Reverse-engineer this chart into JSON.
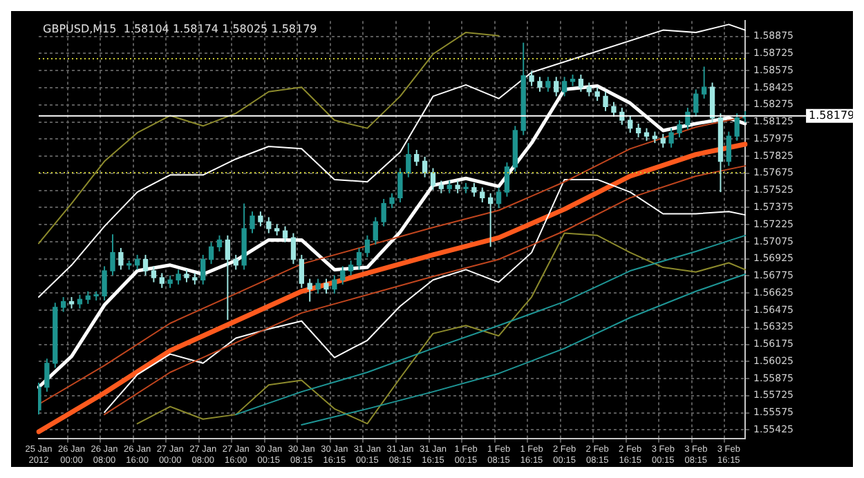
{
  "chart_data": {
    "type": "candlestick",
    "title": "GBPUSD,M15  1.58104 1.58174 1.58025 1.58179",
    "categories": [
      "25 Jan 2012",
      null,
      null,
      null,
      "26 Jan 00:00",
      null,
      null,
      null,
      "26 Jan 08:00",
      null,
      null,
      null,
      "26 Jan 16:00",
      null,
      null,
      null,
      "27 Jan 00:00",
      null,
      null,
      null,
      "27 Jan 08:00",
      null,
      null,
      null,
      "27 Jan 16:00",
      null,
      null,
      null,
      "30 Jan 00:15",
      null,
      null,
      null,
      "30 Jan 08:15",
      null,
      null,
      null,
      "30 Jan 16:15",
      null,
      null,
      null,
      "31 Jan 00:15",
      null,
      null,
      null,
      "31 Jan 08:15",
      null,
      null,
      null,
      "31 Jan 16:15",
      null,
      null,
      null,
      "1 Feb 00:15",
      null,
      null,
      null,
      "1 Feb 08:15",
      null,
      null,
      null,
      "1 Feb 16:15",
      null,
      null,
      null,
      "2 Feb 00:15",
      null,
      null,
      null,
      "2 Feb 08:15",
      null,
      null,
      null,
      "2 Feb 16:15",
      null,
      null,
      null,
      "3 Feb 00:15",
      null,
      null,
      null,
      "3 Feb 08:15",
      null,
      null,
      null,
      "3 Feb 16:15",
      null,
      null
    ],
    "colors": [
      "#1e9490",
      "#1e9490",
      "#1e9490",
      "#1e9490",
      "#9fe6e2",
      "#1e9490",
      "#1e9490",
      "#1e9490",
      "#1e9490",
      "#1e9490",
      "#9fe6e2",
      "#1e9490",
      "#1e9490",
      "#9fe6e2",
      "#9fe6e2",
      "#9fe6e2",
      "#1e9490",
      "#1e9490",
      "#9fe6e2",
      "#9fe6e2",
      "#1e9490",
      "#1e9490",
      "#1e9490",
      "#9fe6e2",
      "#9fe6e2",
      "#1e9490",
      "#1e9490",
      "#9fe6e2",
      "#9fe6e2",
      "#9fe6e2",
      "#9fe6e2",
      "#9fe6e2",
      "#9fe6e2",
      "#9fe6e2",
      "#1e9490",
      "#9fe6e2",
      "#1e9490",
      "#1e9490",
      "#1e9490",
      "#1e9490",
      "#1e9490",
      "#1e9490",
      "#1e9490",
      "#1e9490",
      "#1e9490",
      "#1e9490",
      "#9fe6e2",
      "#9fe6e2",
      "#9fe6e2",
      "#9fe6e2",
      "#1e9490",
      "#9fe6e2",
      "#1e9490",
      "#9fe6e2",
      "#9fe6e2",
      "#9fe6e2",
      "#1e9490",
      "#1e9490",
      "#1e9490",
      "#1e9490",
      "#9fe6e2",
      "#9fe6e2",
      "#1e9490",
      "#9fe6e2",
      "#1e9490",
      "#1e9490",
      "#9fe6e2",
      "#9fe6e2",
      "#9fe6e2",
      "#9fe6e2",
      "#9fe6e2",
      "#9fe6e2",
      "#9fe6e2",
      "#9fe6e2",
      "#9fe6e2",
      "#9fe6e2",
      "#9fe6e2",
      "#1e9490",
      "#1e9490",
      "#1e9490",
      "#1e9490",
      "#1e9490",
      "#9fe6e2",
      "#9fe6e2",
      "#1e9490",
      "#1e9490",
      "#1e9490"
    ],
    "ohlc": [
      [
        1.556,
        1.5584,
        1.5556,
        1.558
      ],
      [
        1.558,
        1.5605,
        1.5576,
        1.5601
      ],
      [
        1.5601,
        1.5654,
        1.5597,
        1.565
      ],
      [
        1.565,
        1.5659,
        1.5646,
        1.5655
      ],
      [
        1.5655,
        1.5659,
        1.5649,
        1.5653
      ],
      [
        1.5653,
        1.5661,
        1.5649,
        1.5657
      ],
      [
        1.5657,
        1.5664,
        1.5653,
        1.566
      ],
      [
        1.566,
        1.5664,
        1.5656,
        1.566
      ],
      [
        1.566,
        1.5686,
        1.5656,
        1.5682
      ],
      [
        1.5682,
        1.5714,
        1.5678,
        1.5698
      ],
      [
        1.5698,
        1.5702,
        1.5683,
        1.5687
      ],
      [
        1.5687,
        1.5691,
        1.5683,
        1.5687
      ],
      [
        1.5687,
        1.5696,
        1.5683,
        1.5692
      ],
      [
        1.5692,
        1.5696,
        1.5678,
        1.5682
      ],
      [
        1.5682,
        1.5686,
        1.5672,
        1.5676
      ],
      [
        1.5676,
        1.568,
        1.5667,
        1.5671
      ],
      [
        1.5671,
        1.5678,
        1.5667,
        1.5674
      ],
      [
        1.5674,
        1.5683,
        1.567,
        1.5679
      ],
      [
        1.5679,
        1.5683,
        1.5672,
        1.5676
      ],
      [
        1.5676,
        1.568,
        1.567,
        1.5674
      ],
      [
        1.5674,
        1.5696,
        1.567,
        1.5692
      ],
      [
        1.5692,
        1.5707,
        1.5688,
        1.5703
      ],
      [
        1.5703,
        1.5713,
        1.5699,
        1.5709
      ],
      [
        1.5709,
        1.5713,
        1.5639,
        1.5692
      ],
      [
        1.5692,
        1.5696,
        1.5683,
        1.5687
      ],
      [
        1.5687,
        1.5741,
        1.5683,
        1.5719
      ],
      [
        1.5719,
        1.5734,
        1.5715,
        1.573
      ],
      [
        1.573,
        1.5734,
        1.5721,
        1.5725
      ],
      [
        1.5725,
        1.5729,
        1.5715,
        1.5719
      ],
      [
        1.5719,
        1.5723,
        1.5713,
        1.5717
      ],
      [
        1.5717,
        1.5721,
        1.5707,
        1.5711
      ],
      [
        1.5711,
        1.5715,
        1.5688,
        1.5692
      ],
      [
        1.5692,
        1.5696,
        1.5667,
        1.5671
      ],
      [
        1.5671,
        1.5675,
        1.5655,
        1.5666
      ],
      [
        1.5666,
        1.5675,
        1.5662,
        1.5671
      ],
      [
        1.5671,
        1.5675,
        1.5662,
        1.5666
      ],
      [
        1.5666,
        1.5678,
        1.5662,
        1.5674
      ],
      [
        1.5674,
        1.5686,
        1.567,
        1.5682
      ],
      [
        1.5682,
        1.5691,
        1.5678,
        1.5687
      ],
      [
        1.5687,
        1.5702,
        1.5683,
        1.5698
      ],
      [
        1.5698,
        1.5713,
        1.5694,
        1.5709
      ],
      [
        1.5709,
        1.5729,
        1.5705,
        1.5725
      ],
      [
        1.5725,
        1.5745,
        1.5721,
        1.5741
      ],
      [
        1.5741,
        1.575,
        1.5737,
        1.5746
      ],
      [
        1.5746,
        1.5772,
        1.5742,
        1.5768
      ],
      [
        1.5768,
        1.5794,
        1.5764,
        1.5784
      ],
      [
        1.5784,
        1.5788,
        1.5774,
        1.5778
      ],
      [
        1.5778,
        1.5782,
        1.5764,
        1.5768
      ],
      [
        1.5768,
        1.5772,
        1.5753,
        1.5757
      ],
      [
        1.5757,
        1.5761,
        1.575,
        1.5754
      ],
      [
        1.5754,
        1.5761,
        1.575,
        1.5757
      ],
      [
        1.5757,
        1.5761,
        1.575,
        1.5754
      ],
      [
        1.5754,
        1.5759,
        1.575,
        1.5755
      ],
      [
        1.5755,
        1.5759,
        1.5747,
        1.5751
      ],
      [
        1.5751,
        1.5755,
        1.5742,
        1.5746
      ],
      [
        1.5746,
        1.575,
        1.5703,
        1.5741
      ],
      [
        1.5741,
        1.5755,
        1.5737,
        1.5751
      ],
      [
        1.5751,
        1.5777,
        1.5747,
        1.5773
      ],
      [
        1.5773,
        1.5809,
        1.5769,
        1.5805
      ],
      [
        1.5805,
        1.5882,
        1.5801,
        1.5853
      ],
      [
        1.5853,
        1.5857,
        1.5844,
        1.5848
      ],
      [
        1.5848,
        1.5852,
        1.5839,
        1.5843
      ],
      [
        1.5843,
        1.5852,
        1.5839,
        1.5848
      ],
      [
        1.5848,
        1.5852,
        1.5835,
        1.5839
      ],
      [
        1.5839,
        1.5852,
        1.5835,
        1.5848
      ],
      [
        1.5848,
        1.5854,
        1.5844,
        1.585
      ],
      [
        1.585,
        1.5854,
        1.5839,
        1.5843
      ],
      [
        1.5843,
        1.5847,
        1.5835,
        1.5839
      ],
      [
        1.5839,
        1.5843,
        1.5831,
        1.5835
      ],
      [
        1.5835,
        1.5839,
        1.5822,
        1.5826
      ],
      [
        1.5826,
        1.583,
        1.5817,
        1.5821
      ],
      [
        1.5821,
        1.5825,
        1.581,
        1.5814
      ],
      [
        1.5814,
        1.5818,
        1.5803,
        1.5807
      ],
      [
        1.5807,
        1.5811,
        1.5799,
        1.5803
      ],
      [
        1.5803,
        1.5807,
        1.5796,
        1.58
      ],
      [
        1.58,
        1.5804,
        1.5794,
        1.5798
      ],
      [
        1.5798,
        1.5802,
        1.579,
        1.5794
      ],
      [
        1.5794,
        1.5807,
        1.579,
        1.5803
      ],
      [
        1.5803,
        1.5814,
        1.5799,
        1.581
      ],
      [
        1.581,
        1.5825,
        1.5806,
        1.5821
      ],
      [
        1.5821,
        1.5841,
        1.5817,
        1.5837
      ],
      [
        1.5837,
        1.5861,
        1.5833,
        1.5843
      ],
      [
        1.5843,
        1.5847,
        1.5812,
        1.5816
      ],
      [
        1.5816,
        1.582,
        1.5751,
        1.5778
      ],
      [
        1.5778,
        1.5804,
        1.5774,
        1.58
      ],
      [
        1.58,
        1.582,
        1.5796,
        1.5816
      ],
      [
        1.5816,
        1.5822,
        1.5812,
        1.5818
      ]
    ],
    "series": [
      {
        "type": "line",
        "color": "#1e9696",
        "values": [
          null,
          null,
          null,
          null,
          null,
          null,
          null,
          null,
          null,
          null,
          null,
          null,
          null,
          null,
          null,
          null,
          null,
          null,
          null,
          null,
          null,
          null,
          null,
          null,
          1.5556,
          null,
          null,
          null,
          null,
          null,
          null,
          null,
          1.5576,
          null,
          null,
          null,
          null,
          null,
          null,
          null,
          1.5593,
          null,
          null,
          null,
          null,
          null,
          null,
          null,
          1.5614,
          null,
          null,
          null,
          null,
          null,
          null,
          null,
          1.5634,
          null,
          null,
          null,
          null,
          null,
          null,
          null,
          1.5655,
          null,
          null,
          null,
          null,
          null,
          null,
          null,
          1.5682,
          null,
          null,
          null,
          null,
          null,
          null,
          null,
          1.5699,
          null,
          null,
          null,
          null,
          null,
          1.5713
        ]
      },
      {
        "type": "line",
        "color": "#1e9696",
        "values": [
          null,
          null,
          null,
          null,
          null,
          null,
          null,
          null,
          null,
          null,
          null,
          null,
          null,
          null,
          null,
          null,
          null,
          null,
          null,
          null,
          null,
          null,
          null,
          null,
          null,
          null,
          null,
          null,
          null,
          null,
          null,
          null,
          1.5547,
          null,
          null,
          null,
          null,
          null,
          null,
          null,
          1.5561,
          null,
          null,
          null,
          null,
          null,
          null,
          null,
          1.5576,
          null,
          null,
          null,
          null,
          null,
          null,
          null,
          1.5592,
          null,
          null,
          null,
          null,
          null,
          null,
          null,
          1.5614,
          null,
          null,
          null,
          null,
          null,
          null,
          null,
          1.5641,
          null,
          null,
          null,
          null,
          null,
          null,
          null,
          1.5664,
          null,
          null,
          null,
          null,
          null,
          1.5679
        ]
      },
      {
        "type": "line",
        "color": "#8c8a2c",
        "values": [
          1.5706,
          null,
          null,
          null,
          1.5741,
          null,
          null,
          null,
          1.5778,
          null,
          null,
          null,
          1.5803,
          null,
          null,
          null,
          1.5818,
          null,
          null,
          null,
          1.5809,
          null,
          null,
          null,
          1.582,
          null,
          null,
          null,
          1.5839,
          null,
          null,
          null,
          1.5843,
          null,
          null,
          null,
          1.5814,
          null,
          null,
          null,
          1.5807,
          null,
          null,
          null,
          1.5835,
          null,
          null,
          null,
          1.5872,
          null,
          null,
          null,
          1.5891,
          null,
          null,
          null,
          1.5888,
          null,
          null,
          null,
          null,
          null,
          null,
          null,
          null,
          null,
          null,
          null,
          null,
          null,
          null,
          null,
          null,
          null,
          null,
          null,
          null,
          null,
          null,
          null,
          null,
          null,
          null,
          null,
          null,
          null,
          null
        ]
      },
      {
        "type": "line",
        "color": "#8c8a2c",
        "values": [
          null,
          null,
          null,
          null,
          null,
          null,
          null,
          null,
          null,
          null,
          null,
          null,
          1.5548,
          null,
          null,
          null,
          1.5563,
          null,
          null,
          null,
          1.5552,
          null,
          null,
          null,
          1.5556,
          null,
          null,
          null,
          1.5582,
          null,
          null,
          null,
          1.5586,
          null,
          null,
          null,
          1.5561,
          null,
          null,
          null,
          1.5548,
          null,
          null,
          null,
          1.5588,
          null,
          null,
          null,
          1.5627,
          null,
          null,
          null,
          1.5634,
          null,
          null,
          null,
          1.5625,
          null,
          null,
          null,
          1.5659,
          null,
          null,
          null,
          1.5715,
          null,
          null,
          null,
          1.5713,
          null,
          null,
          null,
          1.5698,
          null,
          null,
          null,
          1.5685,
          null,
          null,
          null,
          1.5681,
          null,
          null,
          null,
          1.5689,
          null,
          1.5683
        ]
      },
      {
        "type": "line",
        "color": "#c0451e",
        "values": [
          1.5565,
          null,
          null,
          null,
          null,
          null,
          null,
          null,
          1.5599,
          null,
          null,
          null,
          null,
          null,
          null,
          null,
          1.5636,
          null,
          null,
          null,
          null,
          null,
          null,
          null,
          1.5662,
          null,
          null,
          null,
          null,
          null,
          null,
          null,
          1.5688,
          null,
          null,
          null,
          null,
          null,
          null,
          null,
          1.5704,
          null,
          null,
          null,
          null,
          null,
          null,
          null,
          1.572,
          null,
          null,
          null,
          null,
          null,
          null,
          null,
          1.5735,
          null,
          null,
          null,
          null,
          null,
          null,
          null,
          1.576,
          null,
          null,
          null,
          null,
          null,
          null,
          null,
          1.5789,
          null,
          null,
          null,
          null,
          null,
          null,
          null,
          1.5808,
          null,
          null,
          null,
          null,
          null,
          1.5817
        ]
      },
      {
        "type": "line",
        "color": "#c0451e",
        "values": [
          null,
          null,
          null,
          null,
          null,
          null,
          null,
          null,
          1.5556,
          null,
          null,
          null,
          null,
          null,
          null,
          null,
          1.5593,
          null,
          null,
          null,
          null,
          null,
          null,
          null,
          1.5619,
          null,
          null,
          null,
          null,
          null,
          null,
          null,
          1.5645,
          null,
          null,
          null,
          null,
          null,
          null,
          null,
          1.5661,
          null,
          null,
          null,
          null,
          null,
          null,
          null,
          1.5677,
          null,
          null,
          null,
          null,
          null,
          null,
          null,
          1.5692,
          null,
          null,
          null,
          null,
          null,
          null,
          null,
          1.5717,
          null,
          null,
          null,
          null,
          null,
          null,
          null,
          1.5746,
          null,
          null,
          null,
          null,
          null,
          null,
          null,
          1.5765,
          null,
          null,
          null,
          null,
          null,
          1.5774
        ]
      },
      {
        "type": "line",
        "color": "#ffffff",
        "values": [
          1.5659,
          null,
          null,
          null,
          1.5687,
          null,
          null,
          null,
          1.5721,
          null,
          null,
          null,
          1.5751,
          null,
          null,
          null,
          1.5766,
          null,
          null,
          null,
          1.5766,
          null,
          null,
          null,
          1.578,
          null,
          null,
          null,
          1.5791,
          null,
          null,
          null,
          1.5789,
          null,
          null,
          null,
          1.5762,
          null,
          null,
          null,
          1.576,
          null,
          null,
          null,
          1.5786,
          null,
          null,
          null,
          1.5835,
          null,
          null,
          null,
          1.5845,
          null,
          null,
          null,
          1.5833,
          null,
          null,
          null,
          1.5856,
          null,
          null,
          null,
          null,
          null,
          null,
          null,
          null,
          null,
          null,
          null,
          null,
          null,
          null,
          null,
          1.5893,
          null,
          null,
          null,
          1.5891,
          null,
          null,
          null,
          1.5898,
          null,
          1.5893
        ]
      },
      {
        "type": "line",
        "color": "#ffffff",
        "values": [
          null,
          null,
          null,
          null,
          null,
          null,
          null,
          null,
          1.5558,
          null,
          null,
          null,
          1.5591,
          null,
          null,
          null,
          1.5609,
          null,
          null,
          null,
          1.5601,
          null,
          null,
          null,
          1.5623,
          null,
          null,
          null,
          1.5631,
          null,
          null,
          null,
          1.5638,
          null,
          null,
          null,
          1.5606,
          null,
          null,
          null,
          1.5621,
          null,
          null,
          null,
          1.5651,
          null,
          null,
          null,
          1.5674,
          null,
          null,
          null,
          1.5683,
          null,
          null,
          null,
          1.5672,
          null,
          null,
          null,
          1.5698,
          null,
          null,
          null,
          1.5762,
          null,
          null,
          null,
          1.5762,
          null,
          null,
          null,
          1.5751,
          null,
          null,
          null,
          1.5732,
          null,
          null,
          null,
          1.5732,
          null,
          null,
          null,
          1.5734,
          null,
          1.5731
        ]
      },
      {
        "type": "line",
        "color": "#ff5a1e",
        "values": [
          1.5541,
          null,
          null,
          null,
          null,
          null,
          null,
          null,
          1.5575,
          null,
          null,
          null,
          null,
          null,
          null,
          null,
          1.5612,
          null,
          null,
          null,
          null,
          null,
          null,
          null,
          1.5638,
          null,
          null,
          null,
          null,
          null,
          null,
          null,
          1.5664,
          null,
          null,
          null,
          null,
          null,
          null,
          null,
          1.568,
          null,
          null,
          null,
          null,
          null,
          null,
          null,
          1.5696,
          null,
          null,
          null,
          null,
          null,
          null,
          null,
          1.5711,
          null,
          null,
          null,
          null,
          null,
          null,
          null,
          1.5736,
          null,
          null,
          null,
          null,
          null,
          null,
          null,
          1.5765,
          null,
          null,
          null,
          null,
          null,
          null,
          null,
          1.5784,
          null,
          null,
          null,
          null,
          null,
          1.5793
        ]
      },
      {
        "type": "line",
        "color": "#ffffff",
        "values": [
          1.558,
          null,
          null,
          null,
          1.5607,
          null,
          null,
          null,
          1.5652,
          null,
          null,
          null,
          1.5682,
          null,
          null,
          null,
          1.5687,
          null,
          null,
          null,
          1.5679,
          null,
          null,
          null,
          1.5691,
          null,
          null,
          null,
          1.5709,
          null,
          null,
          null,
          1.5709,
          null,
          null,
          null,
          1.5683,
          null,
          null,
          null,
          1.5685,
          null,
          null,
          null,
          1.5716,
          null,
          null,
          null,
          1.5757,
          null,
          null,
          null,
          1.5763,
          null,
          null,
          null,
          1.5756,
          null,
          null,
          null,
          1.5794,
          null,
          null,
          null,
          1.5841,
          null,
          null,
          null,
          1.5844,
          null,
          null,
          null,
          1.5829,
          null,
          null,
          null,
          1.5805,
          null,
          null,
          null,
          1.5811,
          null,
          null,
          null,
          1.5816,
          null,
          1.5811
        ]
      }
    ],
    "ylim": [
      1.5535,
      1.5901
    ],
    "yticks": [
      1.55425,
      1.55575,
      1.55725,
      1.55875,
      1.56025,
      1.56175,
      1.56325,
      1.56475,
      1.56625,
      1.56775,
      1.56925,
      1.57075,
      1.57225,
      1.57375,
      1.57525,
      1.57675,
      1.57825,
      1.57975,
      1.58125,
      1.58275,
      1.58425,
      1.58575,
      1.58725,
      1.58875
    ],
    "ref_lines": [
      {
        "axis": "y",
        "value": 1.58179,
        "label": "1.58179",
        "color": "#ffffff",
        "line_style": "solid"
      },
      {
        "axis": "y",
        "value": 1.5868,
        "label": null,
        "color": "#c8c832",
        "line_style": "dotted"
      },
      {
        "axis": "y",
        "value": 1.5768,
        "label": null,
        "color": "#c8c832",
        "line_style": "dotted"
      }
    ],
    "grid": true,
    "legend": false,
    "marker": "none",
    "line_style": "solid"
  }
}
